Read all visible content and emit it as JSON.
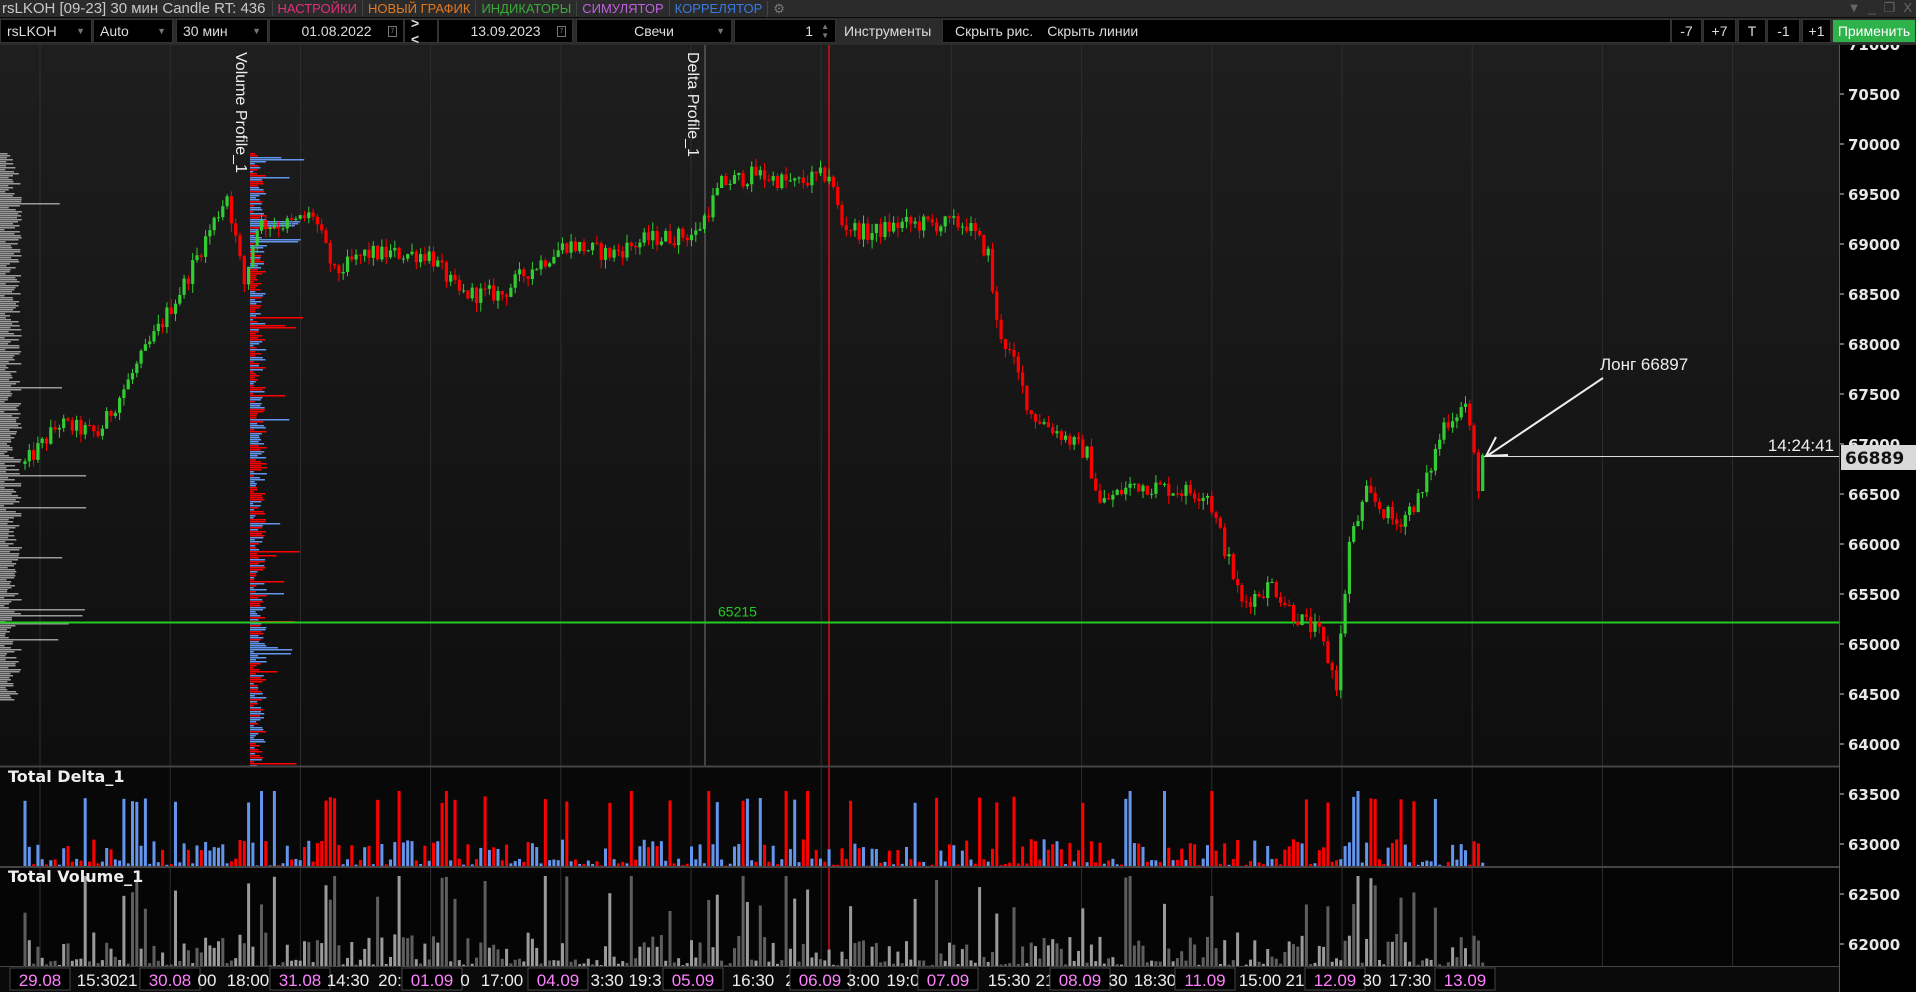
{
  "titlebar": {
    "title": "rsLKOH [09-23] 30 мин Candle RT: 436",
    "menu": [
      {
        "label": "НАСТРОЙКИ",
        "color": "#e0307a"
      },
      {
        "label": "НОВЫЙ ГРАФИК",
        "color": "#e07a20"
      },
      {
        "label": "ИНДИКАТОРЫ",
        "color": "#3aaa3a"
      },
      {
        "label": "СИМУЛЯТОР",
        "color": "#c060e0"
      },
      {
        "label": "КОРРЕЛЯТОР",
        "color": "#3a7ae0"
      }
    ],
    "settings_icon": "gears-icon",
    "window_controls": [
      "pin-icon",
      "minimize-icon",
      "restore-icon",
      "close-icon"
    ]
  },
  "toolbar": {
    "symbol": "rsLKOH",
    "scale": "Auto",
    "timeframe": "30 мин",
    "date_from": "01.08.2022",
    "nav": "> <",
    "date_to": "13.09.2023",
    "chart_type": "Свечи",
    "count": "1",
    "tools": "Инструменты",
    "hide_drawings": "Скрыть рис.",
    "hide_lines": "Скрыть линии",
    "shift_buttons": [
      "-7",
      "+7",
      "T",
      "-1",
      "+1"
    ],
    "apply": "Применить"
  },
  "chart": {
    "colors": {
      "up": "#33cc33",
      "down": "#ff0000",
      "delta_pos": "#6495ed",
      "delta_neg": "#ff0000",
      "level": "#22cc22"
    },
    "price_axis": [
      71000,
      70500,
      70000,
      69500,
      69000,
      68500,
      68000,
      67500,
      67000,
      66500,
      66000,
      65500,
      65000,
      64500,
      64000,
      63500,
      63000,
      62500,
      62000
    ],
    "current_price": "66889",
    "current_time": "14:24:41",
    "level_line": {
      "price": 65215,
      "label": "65215"
    },
    "annotation": "Лонг 66897",
    "indicator_labels": {
      "volume_profile": "Volume Profile_1",
      "delta_profile": "Delta Profile_1"
    },
    "panes": {
      "delta": "Total Delta_1",
      "volume": "Total Volume_1"
    },
    "time_axis": [
      {
        "label": "29.08",
        "date": true
      },
      {
        "label": "15:30"
      },
      {
        "label": "21"
      },
      {
        "label": "30.08",
        "date": true
      },
      {
        "label": "00"
      },
      {
        "label": "18:00"
      },
      {
        "label": "31.08",
        "date": true
      },
      {
        "label": "14:30"
      },
      {
        "label": "20:"
      },
      {
        "label": "01.09",
        "date": true
      },
      {
        "label": "0"
      },
      {
        "label": "17:00"
      },
      {
        "label": "04.09",
        "date": true
      },
      {
        "label": "3:30"
      },
      {
        "label": "19:3"
      },
      {
        "label": "05.09",
        "date": true
      },
      {
        "label": "16:30"
      },
      {
        "label": "2"
      },
      {
        "label": "06.09",
        "date": true
      },
      {
        "label": "3:00"
      },
      {
        "label": "19:0"
      },
      {
        "label": "07.09",
        "date": true
      },
      {
        "label": "15:30"
      },
      {
        "label": "21"
      },
      {
        "label": "08.09",
        "date": true
      },
      {
        "label": "30"
      },
      {
        "label": "18:30"
      },
      {
        "label": "11.09",
        "date": true
      },
      {
        "label": "15:00"
      },
      {
        "label": "21"
      },
      {
        "label": "12.09",
        "date": true
      },
      {
        "label": "30"
      },
      {
        "label": "17:30"
      },
      {
        "label": "13.09",
        "date": true
      }
    ],
    "price_path": [
      [
        0,
        66800
      ],
      [
        8,
        67200
      ],
      [
        17,
        67100
      ],
      [
        25,
        67700
      ],
      [
        37,
        68600
      ],
      [
        47,
        69500
      ],
      [
        51,
        68600
      ],
      [
        54,
        69200
      ],
      [
        62,
        69200
      ],
      [
        67,
        69300
      ],
      [
        72,
        68700
      ],
      [
        79,
        68900
      ],
      [
        94,
        68900
      ],
      [
        101,
        68500
      ],
      [
        111,
        68500
      ],
      [
        116,
        68700
      ],
      [
        126,
        69000
      ],
      [
        136,
        68900
      ],
      [
        145,
        69050
      ],
      [
        156,
        69100
      ],
      [
        162,
        69600
      ],
      [
        170,
        69700
      ],
      [
        179,
        69600
      ],
      [
        187,
        69700
      ],
      [
        190,
        69200
      ],
      [
        196,
        69100
      ],
      [
        204,
        69200
      ],
      [
        219,
        69200
      ],
      [
        224,
        68900
      ],
      [
        226,
        68200
      ],
      [
        230,
        67800
      ],
      [
        234,
        67300
      ],
      [
        241,
        67100
      ],
      [
        247,
        66900
      ],
      [
        250,
        66400
      ],
      [
        258,
        66600
      ],
      [
        275,
        66500
      ],
      [
        278,
        66100
      ],
      [
        283,
        65400
      ],
      [
        290,
        65600
      ],
      [
        295,
        65300
      ],
      [
        301,
        65100
      ],
      [
        305,
        64600
      ],
      [
        308,
        66000
      ],
      [
        312,
        66500
      ],
      [
        319,
        66200
      ],
      [
        325,
        66500
      ],
      [
        330,
        67200
      ],
      [
        335,
        67400
      ],
      [
        338,
        66600
      ],
      [
        339,
        66889
      ]
    ]
  }
}
